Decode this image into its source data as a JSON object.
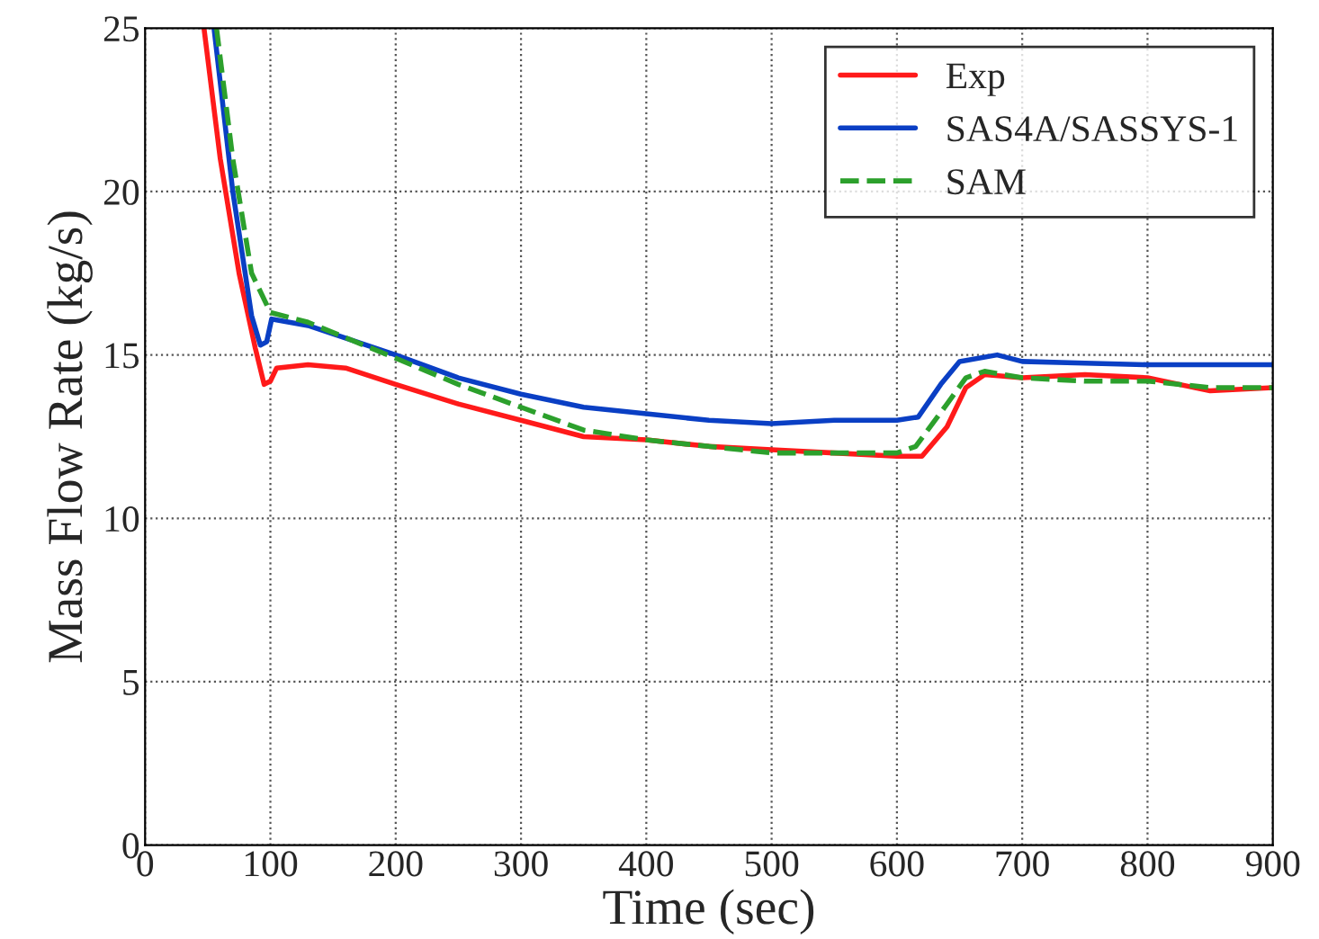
{
  "chart_data": {
    "type": "line",
    "xlabel": "Time (sec)",
    "ylabel": "Mass Flow Rate (kg/s)",
    "xlim": [
      0,
      900
    ],
    "ylim": [
      0,
      25
    ],
    "xticks": [
      0,
      100,
      200,
      300,
      400,
      500,
      600,
      700,
      800,
      900
    ],
    "yticks": [
      0,
      5,
      10,
      15,
      20,
      25
    ],
    "grid": true,
    "legend": "top right",
    "series": [
      {
        "name": "Exp",
        "color": "#ff1a1a",
        "line_style": "solid",
        "x": [
          47,
          60,
          75,
          88,
          95,
          100,
          105,
          130,
          160,
          200,
          250,
          300,
          350,
          400,
          450,
          500,
          550,
          600,
          620,
          640,
          655,
          670,
          700,
          750,
          800,
          850,
          900
        ],
        "values": [
          25,
          21,
          17.5,
          15.2,
          14.1,
          14.2,
          14.6,
          14.7,
          14.6,
          14.1,
          13.5,
          13.0,
          12.5,
          12.4,
          12.2,
          12.1,
          12.0,
          11.9,
          11.9,
          12.8,
          14.0,
          14.4,
          14.3,
          14.4,
          14.3,
          13.9,
          14.0
        ]
      },
      {
        "name": "SAS4A/SASSYS-1",
        "color": "#0a3fc4",
        "line_style": "solid",
        "x": [
          55,
          70,
          85,
          92,
          97,
          101,
          130,
          200,
          250,
          300,
          350,
          400,
          450,
          500,
          550,
          600,
          617,
          635,
          650,
          680,
          700,
          750,
          800,
          900
        ],
        "values": [
          25,
          20,
          16.2,
          15.3,
          15.4,
          16.1,
          15.9,
          15.0,
          14.3,
          13.8,
          13.4,
          13.2,
          13.0,
          12.9,
          13.0,
          13.0,
          13.1,
          14.1,
          14.8,
          15.0,
          14.8,
          14.75,
          14.7,
          14.7
        ]
      },
      {
        "name": "SAM",
        "color": "#2ca02c",
        "line_style": "dashed",
        "x": [
          57,
          70,
          85,
          100,
          130,
          200,
          250,
          300,
          350,
          400,
          450,
          500,
          550,
          600,
          615,
          640,
          655,
          670,
          700,
          750,
          800,
          850,
          900
        ],
        "values": [
          25,
          21,
          17.5,
          16.3,
          16.0,
          14.9,
          14.1,
          13.4,
          12.7,
          12.4,
          12.2,
          12.0,
          12.0,
          12.0,
          12.2,
          13.5,
          14.3,
          14.5,
          14.3,
          14.2,
          14.2,
          14.0,
          14.0
        ]
      }
    ]
  }
}
